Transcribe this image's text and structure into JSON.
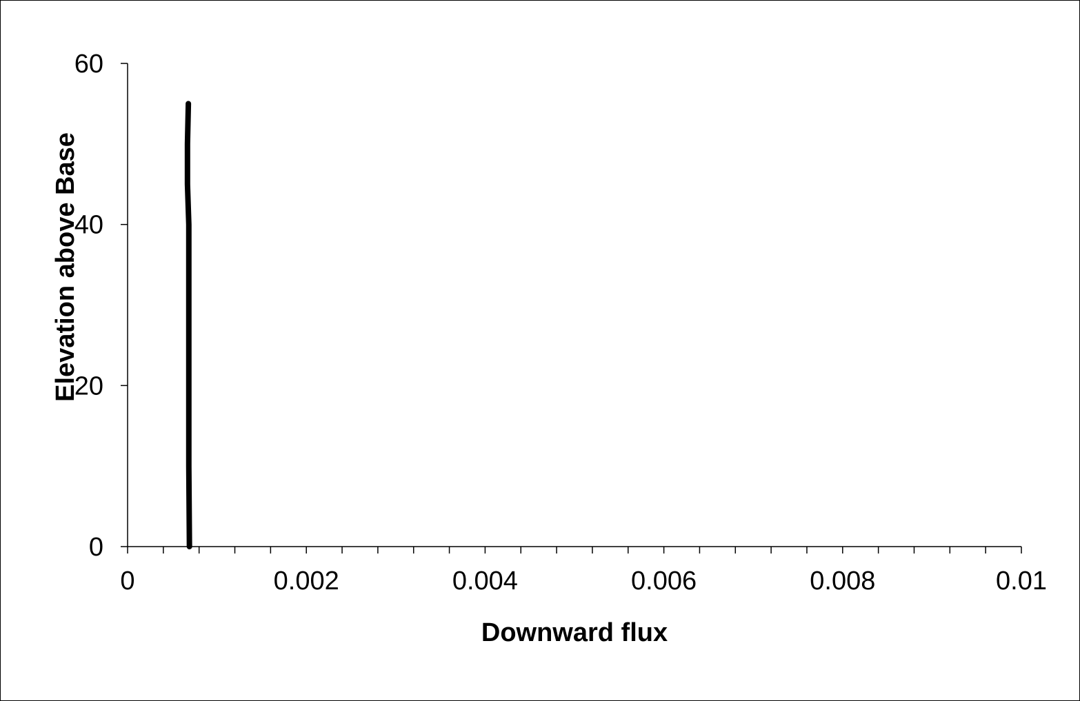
{
  "chart_data": {
    "type": "line",
    "title": "",
    "xlabel": "Downward flux",
    "ylabel": "Elevation above Base",
    "xlim": [
      0,
      0.01
    ],
    "ylim": [
      0,
      60
    ],
    "x_ticks": [
      0,
      0.002,
      0.004,
      0.006,
      0.008,
      0.01
    ],
    "x_tick_labels": [
      "0",
      "0.002",
      "0.004",
      "0.006",
      "0.008",
      "0.01"
    ],
    "x_minor_ticks_per_major": 5,
    "y_ticks": [
      0,
      20,
      40,
      60
    ],
    "y_tick_labels": [
      "0",
      "20",
      "40",
      "60"
    ],
    "grid": false,
    "legend": "none",
    "series": [
      {
        "color": "#000000",
        "points": [
          {
            "x": 0.000692,
            "y": 0
          },
          {
            "x": 0.000685,
            "y": 10
          },
          {
            "x": 0.000685,
            "y": 20
          },
          {
            "x": 0.000685,
            "y": 30
          },
          {
            "x": 0.000685,
            "y": 40
          },
          {
            "x": 0.00067,
            "y": 45
          },
          {
            "x": 0.00067,
            "y": 50
          },
          {
            "x": 0.00068,
            "y": 55
          }
        ]
      }
    ]
  }
}
